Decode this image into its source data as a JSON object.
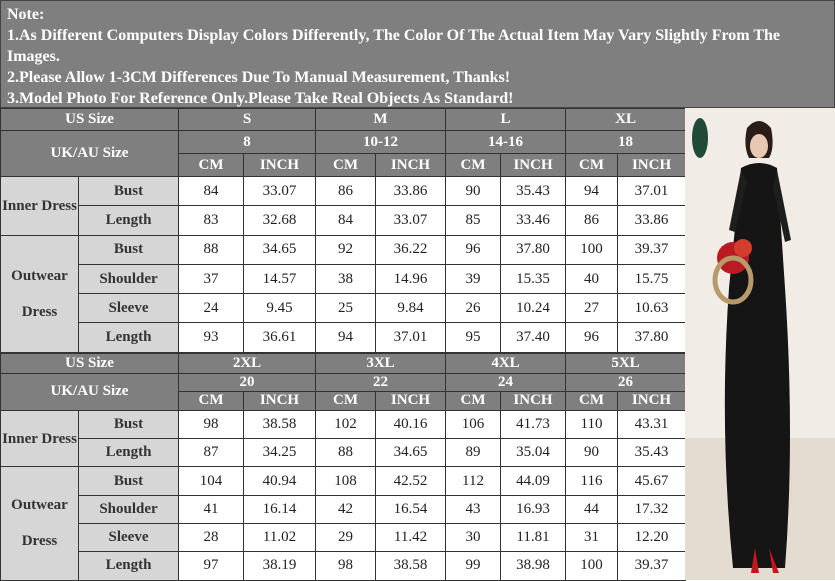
{
  "notes": [
    "Note:",
    "1.As Different Computers Display Colors Differently, The Color Of The Actual Item May Vary Slightly From The Images.",
    "2.Please Allow 1-3CM Differences Due To Manual Measurement, Thanks!",
    "3.Model Photo For Reference Only.Please Take Real Objects As Standard!"
  ],
  "tables": [
    {
      "us_size_label": "US Size",
      "sizes": [
        "S",
        "M",
        "L",
        "XL"
      ],
      "uk_label": "UK/AU Size",
      "uk_sizes": [
        "8",
        "10-12",
        "14-16",
        "18"
      ],
      "units": [
        "CM",
        "INCH"
      ],
      "groups": [
        {
          "name": "Inner Dress",
          "rows": [
            {
              "label": "Bust",
              "values": [
                "84",
                "33.07",
                "86",
                "33.86",
                "90",
                "35.43",
                "94",
                "37.01"
              ]
            },
            {
              "label": "Length",
              "values": [
                "83",
                "32.68",
                "84",
                "33.07",
                "85",
                "33.46",
                "86",
                "33.86"
              ]
            }
          ]
        },
        {
          "name": "Outwear Dress",
          "rows": [
            {
              "label": "Bust",
              "values": [
                "88",
                "34.65",
                "92",
                "36.22",
                "96",
                "37.80",
                "100",
                "39.37"
              ]
            },
            {
              "label": "Shoulder",
              "values": [
                "37",
                "14.57",
                "38",
                "14.96",
                "39",
                "15.35",
                "40",
                "15.75"
              ]
            },
            {
              "label": "Sleeve",
              "values": [
                "24",
                "9.45",
                "25",
                "9.84",
                "26",
                "10.24",
                "27",
                "10.63"
              ]
            },
            {
              "label": "Length",
              "values": [
                "93",
                "36.61",
                "94",
                "37.01",
                "95",
                "37.40",
                "96",
                "37.80"
              ]
            }
          ]
        }
      ]
    },
    {
      "us_size_label": "US Size",
      "sizes": [
        "2XL",
        "3XL",
        "4XL",
        "5XL"
      ],
      "uk_label": "UK/AU Size",
      "uk_sizes": [
        "20",
        "22",
        "24",
        "26"
      ],
      "units": [
        "CM",
        "INCH"
      ],
      "groups": [
        {
          "name": "Inner Dress",
          "rows": [
            {
              "label": "Bust",
              "values": [
                "98",
                "38.58",
                "102",
                "40.16",
                "106",
                "41.73",
                "110",
                "43.31"
              ]
            },
            {
              "label": "Length",
              "values": [
                "87",
                "34.25",
                "88",
                "34.65",
                "89",
                "35.04",
                "90",
                "35.43"
              ]
            }
          ]
        },
        {
          "name": "Outwear Dress",
          "rows": [
            {
              "label": "Bust",
              "values": [
                "104",
                "40.94",
                "108",
                "42.52",
                "112",
                "44.09",
                "116",
                "45.67"
              ]
            },
            {
              "label": "Shoulder",
              "values": [
                "41",
                "16.14",
                "42",
                "16.54",
                "43",
                "16.93",
                "44",
                "17.32"
              ]
            },
            {
              "label": "Sleeve",
              "values": [
                "28",
                "11.02",
                "29",
                "11.42",
                "30",
                "11.81",
                "31",
                "12.20"
              ]
            },
            {
              "label": "Length",
              "values": [
                "97",
                "38.19",
                "98",
                "38.58",
                "99",
                "38.98",
                "100",
                "39.37"
              ]
            }
          ]
        }
      ]
    }
  ]
}
